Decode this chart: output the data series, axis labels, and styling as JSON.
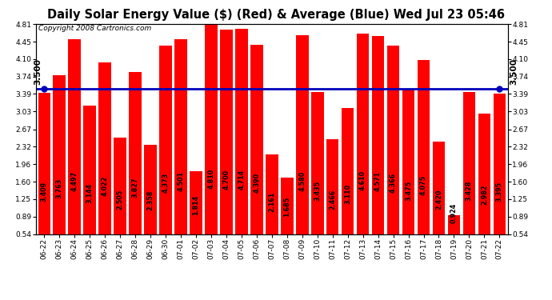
{
  "title": "Daily Solar Energy Value ($) (Red) & Average (Blue) Wed Jul 23 05:46",
  "copyright": "Copyright 2008 Cartronics.com",
  "bar_color": "#ff0000",
  "avg_line_color": "#0000bb",
  "avg_value": 3.5,
  "categories": [
    "06-22",
    "06-23",
    "06-24",
    "06-25",
    "06-26",
    "06-27",
    "06-28",
    "06-29",
    "06-30",
    "07-01",
    "07-02",
    "07-03",
    "07-04",
    "07-05",
    "07-06",
    "07-07",
    "07-08",
    "07-09",
    "07-10",
    "07-11",
    "07-12",
    "07-13",
    "07-14",
    "07-15",
    "07-16",
    "07-17",
    "07-18",
    "07-19",
    "07-20",
    "07-21",
    "07-22"
  ],
  "values": [
    3.409,
    3.763,
    4.497,
    3.144,
    4.022,
    2.505,
    3.827,
    2.358,
    4.373,
    4.501,
    1.814,
    4.81,
    4.7,
    4.714,
    4.39,
    2.161,
    1.685,
    4.58,
    3.435,
    2.466,
    3.11,
    4.61,
    4.571,
    4.366,
    3.475,
    4.075,
    2.42,
    0.924,
    3.428,
    2.982,
    3.395
  ],
  "yticks": [
    0.54,
    0.89,
    1.25,
    1.6,
    1.96,
    2.32,
    2.67,
    3.03,
    3.39,
    3.74,
    4.1,
    4.45,
    4.81
  ],
  "ymin": 0.54,
  "ymax": 4.81,
  "avg_label": "3.500",
  "background_color": "#ffffff",
  "grid_color": "#aaaaaa",
  "title_fontsize": 10.5,
  "copyright_fontsize": 6.5,
  "tick_fontsize": 6.5,
  "bar_label_fontsize": 5.8,
  "avg_label_fontsize": 7.5
}
